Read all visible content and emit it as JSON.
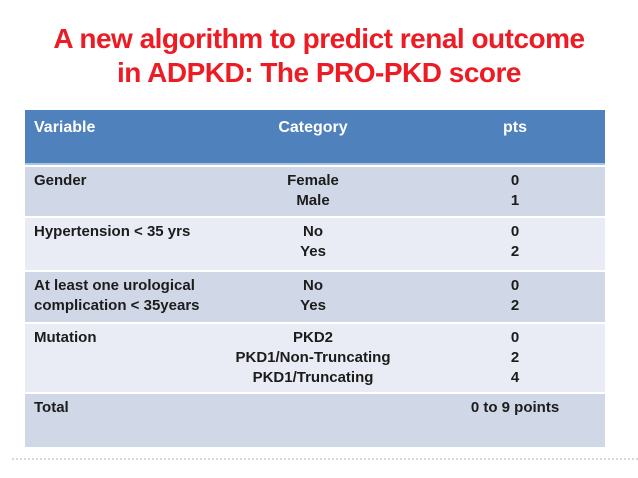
{
  "title": {
    "line1": "A new algorithm to predict renal outcome",
    "line2": "in ADPKD: The PRO-PKD score"
  },
  "table": {
    "columns": [
      "Variable",
      "Category",
      "pts"
    ],
    "rows": [
      {
        "variable_lines": [
          "Gender"
        ],
        "categories": [
          "Female",
          "Male"
        ],
        "pts": [
          "0",
          "1"
        ]
      },
      {
        "variable_lines": [
          "Hypertension < 35 yrs"
        ],
        "categories": [
          "No",
          "Yes"
        ],
        "pts": [
          "0",
          "2"
        ]
      },
      {
        "variable_lines": [
          "At least one urological",
          "complication < 35years"
        ],
        "categories": [
          "No",
          "Yes"
        ],
        "pts": [
          "0",
          "2"
        ]
      },
      {
        "variable_lines": [
          "Mutation"
        ],
        "categories": [
          "PKD2",
          "PKD1/Non-Truncating",
          "PKD1/Truncating"
        ],
        "pts": [
          "0",
          "2",
          "4"
        ]
      },
      {
        "variable_lines": [
          "Total"
        ],
        "categories": [],
        "pts": [
          "0 to 9 points"
        ]
      }
    ]
  },
  "colors": {
    "title_color": "#ed1b23",
    "header_bg": "#4f81bd",
    "header_text": "#ffffff",
    "header_divider": "#a9c4de",
    "row_dark": "#d0d7e7",
    "row_light": "#e9ecf4",
    "body_text": "#1c1c1c"
  }
}
